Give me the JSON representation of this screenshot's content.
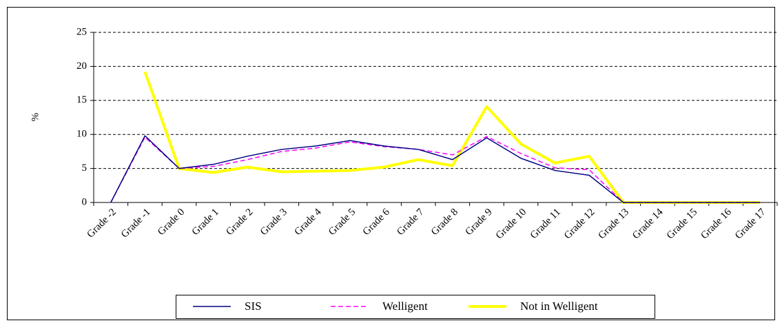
{
  "chart_data": {
    "type": "line",
    "y_label": "%",
    "categories": [
      "Grade -2",
      "Grade -1",
      "Grade 0",
      "Grade 1",
      "Grade 2",
      "Grade 3",
      "Grade 4",
      "Grade 5",
      "Grade 6",
      "Grade 7",
      "Grade 8",
      "Grade 9",
      "Grade 10",
      "Grade 11",
      "Grade 12",
      "Grade 13",
      "Grade 14",
      "Grade 15",
      "Grade 16",
      "Grade 17"
    ],
    "series": [
      {
        "name": "SIS",
        "color": "#000080",
        "style": "solid",
        "width": 1.5,
        "values": [
          0,
          9.8,
          5.0,
          5.6,
          6.8,
          7.8,
          8.3,
          9.1,
          8.3,
          7.8,
          6.3,
          9.5,
          6.5,
          4.7,
          4.0,
          0,
          0,
          0,
          0,
          0
        ]
      },
      {
        "name": "Welligent",
        "color": "#ff00ff",
        "style": "dashed",
        "width": 1.5,
        "values": [
          0,
          9.6,
          5.0,
          5.3,
          6.3,
          7.5,
          8.0,
          8.9,
          8.2,
          7.8,
          7.0,
          9.7,
          7.2,
          5.1,
          4.8,
          0,
          0,
          0,
          0,
          0
        ]
      },
      {
        "name": "Not in Welligent",
        "color": "#ffff00",
        "style": "solid",
        "width": 4,
        "values": [
          null,
          19.2,
          5.0,
          4.4,
          5.2,
          4.5,
          4.6,
          4.7,
          5.2,
          6.3,
          5.4,
          14.1,
          8.6,
          5.8,
          6.8,
          0,
          0,
          0,
          0,
          0
        ]
      }
    ],
    "ylim": [
      0,
      25
    ],
    "yticks": [
      0,
      5,
      10,
      15,
      20,
      25
    ],
    "grid": true,
    "legend": "bottom"
  }
}
